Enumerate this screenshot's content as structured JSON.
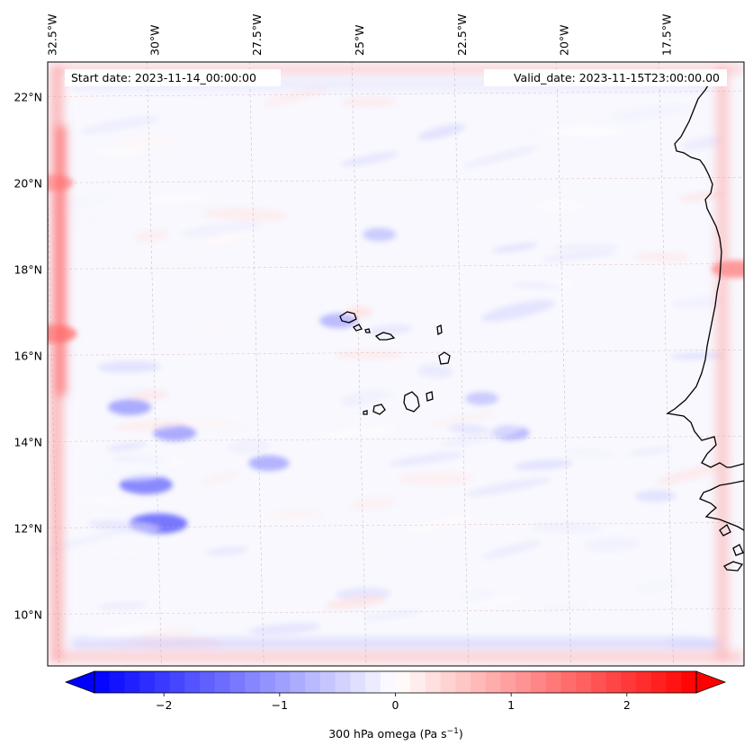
{
  "chart_data": {
    "type": "heatmap",
    "title": "",
    "variable_label": "300 hPa omega (Pa s",
    "variable_unit_exp": "−1",
    "variable_label_close": ")",
    "start_date_text": "Start date: 2023-11-14_00:00:00",
    "valid_date_text": "Valid_date: 2023-11-15T23:00:00.00",
    "x_ticks": [
      {
        "value": -32.5,
        "label": "32.5°W"
      },
      {
        "value": -30.0,
        "label": "30°W"
      },
      {
        "value": -27.5,
        "label": "27.5°W"
      },
      {
        "value": -25.0,
        "label": "25°W"
      },
      {
        "value": -22.5,
        "label": "22.5°W"
      },
      {
        "value": -20.0,
        "label": "20°W"
      },
      {
        "value": -17.5,
        "label": "17.5°W"
      }
    ],
    "y_ticks": [
      {
        "value": 22,
        "label": "22°N"
      },
      {
        "value": 20,
        "label": "20°N"
      },
      {
        "value": 18,
        "label": "18°N"
      },
      {
        "value": 16,
        "label": "16°N"
      },
      {
        "value": 14,
        "label": "14°N"
      },
      {
        "value": 12,
        "label": "12°N"
      },
      {
        "value": 10,
        "label": "10°N"
      }
    ],
    "lon_range": [
      -32.6,
      -15.6
    ],
    "lat_range": [
      8.8,
      22.8
    ],
    "colorbar": {
      "range": [
        -2.6,
        2.6
      ],
      "ticks": [
        {
          "value": -2,
          "label": "−2"
        },
        {
          "value": -1,
          "label": "−1"
        },
        {
          "value": 0,
          "label": "0"
        },
        {
          "value": 1,
          "label": "1"
        },
        {
          "value": 2,
          "label": "2"
        }
      ],
      "levels": 40,
      "colormap": "bwr",
      "extend": "both"
    },
    "features": [
      {
        "name": "descent-band-west-edge",
        "lon": -32.5,
        "lat": 16.5,
        "value": 1.3
      },
      {
        "name": "descent-band-west-edge-2",
        "lon": -32.5,
        "lat": 20.0,
        "value": 1.0
      },
      {
        "name": "descent-coast-west-africa",
        "lon": -15.8,
        "lat": 18.0,
        "value": 1.2
      },
      {
        "name": "ascent-cell-1",
        "lon": -29.9,
        "lat": 12.1,
        "value": -1.6
      },
      {
        "name": "ascent-cell-2",
        "lon": -30.2,
        "lat": 13.0,
        "value": -1.4
      },
      {
        "name": "ascent-cell-3",
        "lon": -30.6,
        "lat": 14.8,
        "value": -1.0
      },
      {
        "name": "ascent-cell-4",
        "lon": -29.5,
        "lat": 14.2,
        "value": -1.0
      },
      {
        "name": "ascent-cell-5",
        "lon": -27.2,
        "lat": 13.5,
        "value": -0.9
      },
      {
        "name": "ascent-band-cape-verde",
        "lon": -25.5,
        "lat": 16.8,
        "value": -0.8
      },
      {
        "name": "ascent-band-south-east",
        "lon": -22.0,
        "lat": 15.0,
        "value": -0.6
      },
      {
        "name": "ascent-cell-6",
        "lon": -21.3,
        "lat": 14.2,
        "value": -0.8
      },
      {
        "name": "ascent-band-north",
        "lon": -24.5,
        "lat": 18.8,
        "value": -0.6
      },
      {
        "name": "weak-descent-central",
        "lon": -25.0,
        "lat": 17.0,
        "value": 0.3
      }
    ]
  },
  "colors": {
    "background": "#ffffff",
    "coastline": "#000000",
    "gridline": "#a0a0a0",
    "annotation_box": "#ffffff"
  }
}
